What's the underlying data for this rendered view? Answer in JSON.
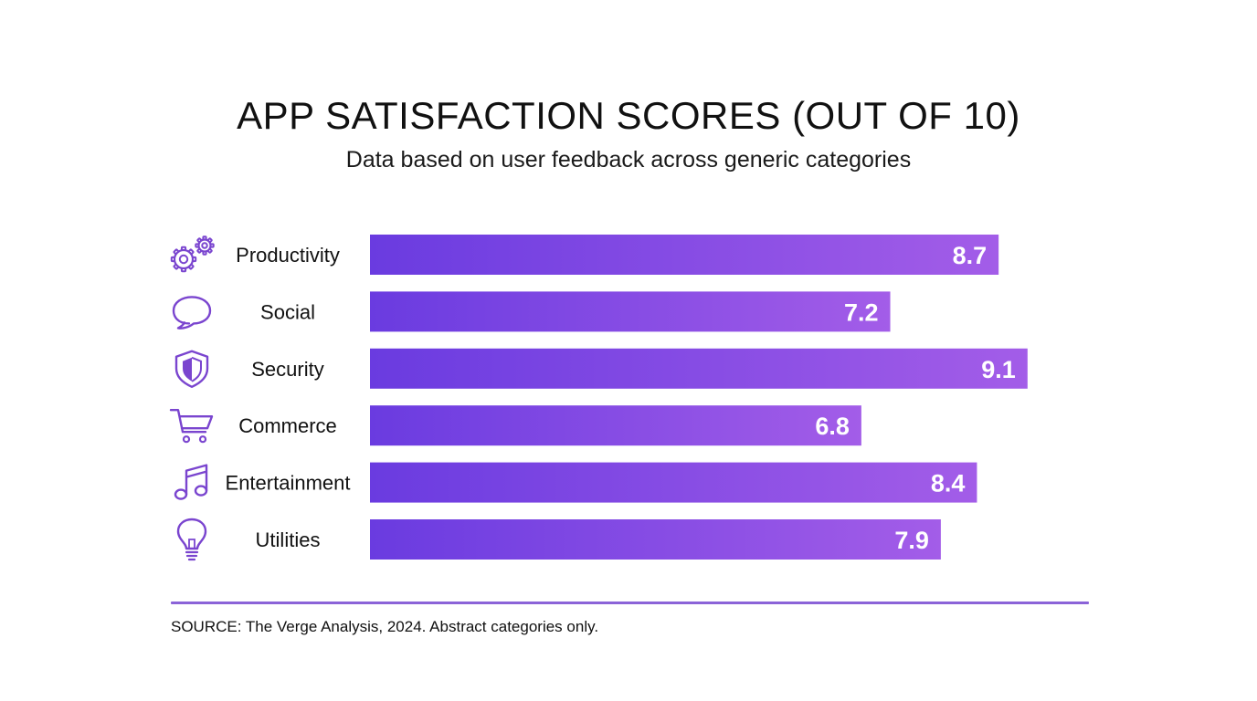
{
  "chart_data": {
    "type": "bar",
    "orientation": "horizontal",
    "title": "APP SATISFACTION SCORES (OUT OF 10)",
    "subtitle": "Data based on user feedback across generic categories",
    "categories": [
      "Productivity",
      "Social",
      "Security",
      "Commerce",
      "Entertainment",
      "Utilities"
    ],
    "icons": [
      "gears-icon",
      "speech-bubble-icon",
      "shield-icon",
      "shopping-cart-icon",
      "music-note-icon",
      "lightbulb-icon"
    ],
    "values": [
      8.7,
      7.2,
      9.1,
      6.8,
      8.4,
      7.9
    ],
    "data_labels": [
      "8.7",
      "7.2",
      "9.1",
      "6.8",
      "8.4",
      "7.9"
    ],
    "xlim": [
      0,
      10
    ],
    "grid": false,
    "legend": "none",
    "colors": {
      "bar_start": "#6a3be0",
      "bar_end": "#a35de8",
      "icon": "#7a45cf",
      "label_text": "#ffffff",
      "divider": "#8b63d8"
    }
  },
  "footer": {
    "source": "SOURCE: The Verge Analysis, 2024. Abstract categories only."
  }
}
